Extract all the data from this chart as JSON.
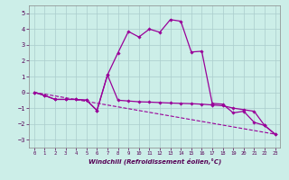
{
  "xlabel": "Windchill (Refroidissement éolien,°C)",
  "background_color": "#cceee8",
  "grid_color": "#aacccc",
  "line_color": "#990099",
  "xlim": [
    -0.5,
    23.5
  ],
  "ylim": [
    -3.5,
    5.5
  ],
  "yticks": [
    -3,
    -2,
    -1,
    0,
    1,
    2,
    3,
    4,
    5
  ],
  "xticks": [
    0,
    1,
    2,
    3,
    4,
    5,
    6,
    7,
    8,
    9,
    10,
    11,
    12,
    13,
    14,
    15,
    16,
    17,
    18,
    19,
    20,
    21,
    22,
    23
  ],
  "series1_x": [
    0,
    1,
    2,
    3,
    4,
    5,
    6,
    7,
    8,
    9,
    10,
    11,
    12,
    13,
    14,
    15,
    16,
    17,
    18,
    19,
    20,
    21,
    22,
    23
  ],
  "series1_y": [
    0.0,
    -0.2,
    -0.45,
    -0.45,
    -0.45,
    -0.5,
    -1.15,
    1.1,
    -0.5,
    -0.55,
    -0.6,
    -0.62,
    -0.65,
    -0.68,
    -0.7,
    -0.72,
    -0.75,
    -0.8,
    -0.85,
    -1.0,
    -1.1,
    -1.2,
    -2.1,
    -2.65
  ],
  "series2_x": [
    0,
    1,
    2,
    3,
    4,
    5,
    6,
    7,
    8,
    9,
    10,
    11,
    12,
    13,
    14,
    15,
    16,
    17,
    18,
    19,
    20,
    21,
    22,
    23
  ],
  "series2_y": [
    0.0,
    -0.2,
    -0.45,
    -0.45,
    -0.45,
    -0.5,
    -1.15,
    1.1,
    2.5,
    3.85,
    3.5,
    4.0,
    3.8,
    4.6,
    4.5,
    2.55,
    2.6,
    -0.7,
    -0.75,
    -1.3,
    -1.2,
    -1.9,
    -2.1,
    -2.65
  ],
  "series3_x": [
    0,
    23
  ],
  "series3_y": [
    0.0,
    -2.65
  ]
}
